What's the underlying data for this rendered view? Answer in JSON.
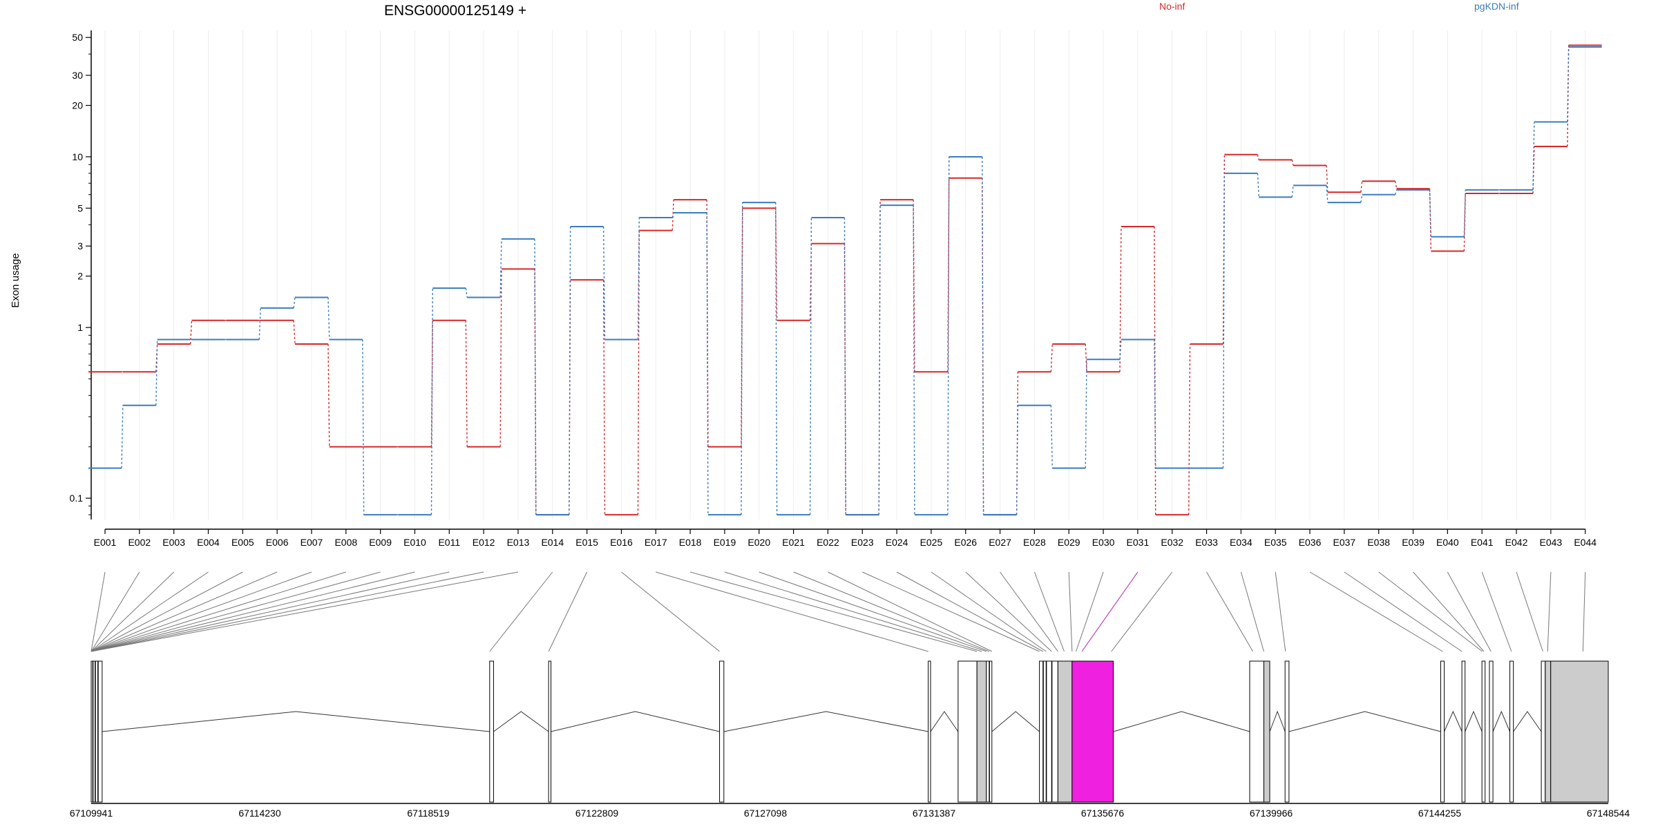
{
  "chart_data": {
    "type": "line",
    "title": "ENSG00000125149 +",
    "ylabel": "Exon usage",
    "yscale": "log",
    "ylim": [
      0.075,
      55
    ],
    "y_ticks": [
      0.1,
      1,
      2,
      3,
      5,
      10,
      20,
      30,
      50
    ],
    "grid": true,
    "legend_position": "top",
    "categories": [
      "E001",
      "E002",
      "E003",
      "E004",
      "E005",
      "E006",
      "E007",
      "E008",
      "E009",
      "E010",
      "E011",
      "E012",
      "E013",
      "E014",
      "E015",
      "E016",
      "E017",
      "E018",
      "E019",
      "E020",
      "E021",
      "E022",
      "E023",
      "E024",
      "E025",
      "E026",
      "E027",
      "E028",
      "E029",
      "E030",
      "E031",
      "E032",
      "E033",
      "E034",
      "E035",
      "E036",
      "E037",
      "E038",
      "E039",
      "E040",
      "E041",
      "E042",
      "E043",
      "E044"
    ],
    "series": [
      {
        "name": "No-inf",
        "color": "#d62728",
        "values": [
          0.55,
          0.55,
          0.8,
          1.1,
          1.1,
          1.1,
          0.8,
          0.2,
          0.2,
          0.2,
          1.1,
          0.2,
          2.2,
          0.08,
          1.9,
          0.08,
          3.7,
          5.6,
          0.2,
          5.0,
          1.1,
          3.1,
          0.08,
          5.6,
          0.55,
          7.5,
          0.08,
          0.55,
          0.8,
          0.55,
          3.9,
          0.08,
          0.8,
          10.3,
          9.6,
          8.9,
          6.2,
          7.2,
          6.5,
          2.8,
          6.1,
          6.1,
          11.5,
          45
        ]
      },
      {
        "name": "pgKDN-inf",
        "color": "#3a7bbf",
        "values": [
          0.15,
          0.35,
          0.85,
          0.85,
          0.85,
          1.3,
          1.5,
          0.85,
          0.08,
          0.08,
          1.7,
          1.5,
          3.3,
          0.08,
          3.9,
          0.85,
          4.4,
          4.7,
          0.08,
          5.4,
          0.08,
          4.4,
          0.08,
          5.2,
          0.08,
          10.0,
          0.08,
          0.35,
          0.15,
          0.65,
          0.85,
          0.15,
          0.15,
          8.0,
          5.8,
          6.8,
          5.4,
          6.0,
          6.4,
          3.4,
          6.4,
          6.4,
          16.0,
          44
        ]
      }
    ],
    "gene_model": {
      "coordinate_labels": [
        "67109941",
        "67114230",
        "67118519",
        "67122809",
        "67127098",
        "67131387",
        "67135676",
        "67139966",
        "67144255",
        "67148544"
      ],
      "coord_start": 67109941,
      "coord_end": 67148544,
      "highlighted_exon": "E031",
      "colors": {
        "highlight": "#f020e0",
        "shaded": "#cccccc",
        "plain": "#ffffff",
        "outline": "#000000"
      },
      "exons": [
        {
          "start": 67109941,
          "end": 67109980,
          "fill": "plain"
        },
        {
          "start": 67109990,
          "end": 67110040,
          "fill": "plain"
        },
        {
          "start": 67110050,
          "end": 67110110,
          "fill": "plain"
        },
        {
          "start": 67110120,
          "end": 67110220,
          "fill": "plain"
        },
        {
          "start": 67120080,
          "end": 67120180,
          "fill": "plain"
        },
        {
          "start": 67121580,
          "end": 67121640,
          "fill": "plain"
        },
        {
          "start": 67125930,
          "end": 67126040,
          "fill": "plain"
        },
        {
          "start": 67131240,
          "end": 67131300,
          "fill": "plain"
        },
        {
          "start": 67132000,
          "end": 67132480,
          "fill": "plain"
        },
        {
          "start": 67132480,
          "end": 67132720,
          "fill": "shaded"
        },
        {
          "start": 67132720,
          "end": 67132790,
          "fill": "plain"
        },
        {
          "start": 67132800,
          "end": 67132860,
          "fill": "plain"
        },
        {
          "start": 67134070,
          "end": 67134160,
          "fill": "plain"
        },
        {
          "start": 67134170,
          "end": 67134240,
          "fill": "plain"
        },
        {
          "start": 67134250,
          "end": 67134380,
          "fill": "plain"
        },
        {
          "start": 67134390,
          "end": 67134540,
          "fill": "plain"
        },
        {
          "start": 67134540,
          "end": 67134900,
          "fill": "shaded"
        },
        {
          "start": 67134900,
          "end": 67135950,
          "fill": "highlight"
        },
        {
          "start": 67139420,
          "end": 67139780,
          "fill": "plain"
        },
        {
          "start": 67139780,
          "end": 67139930,
          "fill": "shaded"
        },
        {
          "start": 67140320,
          "end": 67140420,
          "fill": "plain"
        },
        {
          "start": 67144280,
          "end": 67144370,
          "fill": "plain"
        },
        {
          "start": 67144820,
          "end": 67144900,
          "fill": "plain"
        },
        {
          "start": 67145330,
          "end": 67145410,
          "fill": "plain"
        },
        {
          "start": 67145520,
          "end": 67145610,
          "fill": "plain"
        },
        {
          "start": 67146040,
          "end": 67146130,
          "fill": "plain"
        },
        {
          "start": 67146840,
          "end": 67146940,
          "fill": "plain"
        },
        {
          "start": 67146940,
          "end": 67147080,
          "fill": "shaded"
        },
        {
          "start": 67147080,
          "end": 67148544,
          "fill": "shaded"
        }
      ],
      "exon_links": [
        67109941,
        67109941,
        67109941,
        67109941,
        67109941,
        67109941,
        67109941,
        67109941,
        67109941,
        67109941,
        67109941,
        67109941,
        67109941,
        67120080,
        67121580,
        67125930,
        67131240,
        67132480,
        67132600,
        67132720,
        67132790,
        67132860,
        67134070,
        67134160,
        67134240,
        67134380,
        67134540,
        67134700,
        67134900,
        67135000,
        67135150,
        67135900,
        67139500,
        67139780,
        67140330,
        67144330,
        67144820,
        67145340,
        67145380,
        67145560,
        67146080,
        67146880,
        67147000,
        67147900
      ],
      "introns": [
        [
          67110220,
          67120080
        ],
        [
          67120180,
          67121580
        ],
        [
          67121640,
          67125930
        ],
        [
          67126040,
          67131240
        ],
        [
          67131300,
          67132000
        ],
        [
          67132860,
          67134070
        ],
        [
          67135950,
          67139420
        ],
        [
          67139930,
          67140320
        ],
        [
          67140420,
          67144280
        ],
        [
          67144370,
          67144820
        ],
        [
          67144900,
          67145330
        ],
        [
          67145610,
          67146040
        ],
        [
          67146130,
          67146840
        ]
      ]
    }
  }
}
